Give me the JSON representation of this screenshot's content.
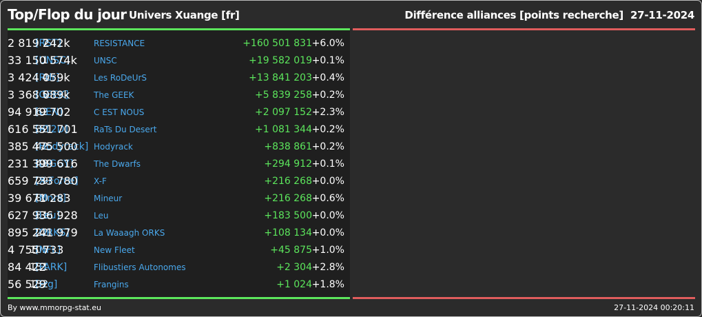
{
  "header": {
    "title": "Top/Flop du jour",
    "universe": "Univers Xuange [fr]",
    "subtitle": "Différence alliances [points recherche]",
    "date": "27-11-2024"
  },
  "colors": {
    "top_accent": "#5ce65c",
    "flop_accent": "#e05d5d",
    "link": "#4aa8ec",
    "positive": "#5ce65c"
  },
  "top_rows": [
    {
      "rank": "7",
      "tag": "[RST]",
      "name": "RESISTANCE",
      "points": "2 819 242k",
      "diff": "+160 501 831",
      "pct": "+6.0%"
    },
    {
      "rank": "1",
      "tag": "[UNSC]",
      "name": "UNSC",
      "points": "33 150 574k",
      "diff": "+19 582 019",
      "pct": "+0.1%"
    },
    {
      "rank": "4",
      "tag": "[Rdr]",
      "name": "Les RoDeUrS",
      "points": "3 424 059k",
      "diff": "+13 841 203",
      "pct": "+0.4%"
    },
    {
      "rank": "5",
      "tag": "[GEEK]",
      "name": "The GEEK",
      "points": "3 368 089k",
      "diff": "+5 839 258",
      "pct": "+0.2%"
    },
    {
      "rank": "62",
      "tag": "[CEN]",
      "name": "C EST NOUS",
      "points": "94 919 702",
      "diff": "+2 097 152",
      "pct": "+2.3%"
    },
    {
      "rank": "32",
      "tag": "[RT2D]",
      "name": "RaTs Du Desert",
      "points": "616 551 701",
      "diff": "+1 081 344",
      "pct": "+0.2%"
    },
    {
      "rank": "42",
      "tag": "[Hodyrack]",
      "name": "Hodyrack",
      "points": "385 475 500",
      "diff": "+838 861",
      "pct": "+0.2%"
    },
    {
      "rank": "48",
      "tag": "[DIGGY]",
      "name": "The Dwarfs",
      "points": "231 399 616",
      "diff": "+294 912",
      "pct": "+0.1%"
    },
    {
      "rank": "29",
      "tag": "[X-Force]",
      "name": "X-F",
      "points": "659 733 780",
      "diff": "+216 268",
      "pct": "+0.0%"
    },
    {
      "rank": "80",
      "tag": "[Mnrs]",
      "name": "Mineur",
      "points": "39 671 283",
      "diff": "+216 268",
      "pct": "+0.6%"
    },
    {
      "rank": "31",
      "tag": "[Leu]",
      "name": "Leu",
      "points": "627 936 928",
      "diff": "+183 500",
      "pct": "+0.0%"
    },
    {
      "rank": "22",
      "tag": "[ORKS]",
      "name": "La Waaagh ORKS",
      "points": "895 241 979",
      "diff": "+108 134",
      "pct": "+0.0%"
    },
    {
      "rank": "105",
      "tag": "[NFL]",
      "name": "New Fleet",
      "points": "4 755 733",
      "diff": "+45 875",
      "pct": "+1.0%"
    },
    {
      "rank": "131",
      "tag": "[FARK]",
      "name": "Flibustiers Autonomes",
      "points": "84 422",
      "diff": "+2 304",
      "pct": "+2.8%"
    },
    {
      "rank": "132",
      "tag": "[Frg]",
      "name": "Frangins",
      "points": "56 529",
      "diff": "+1 024",
      "pct": "+1.8%"
    }
  ],
  "footer": {
    "credit": "By www.mmorpg-stat.eu",
    "timestamp": "27-11-2024 00:20:11"
  }
}
